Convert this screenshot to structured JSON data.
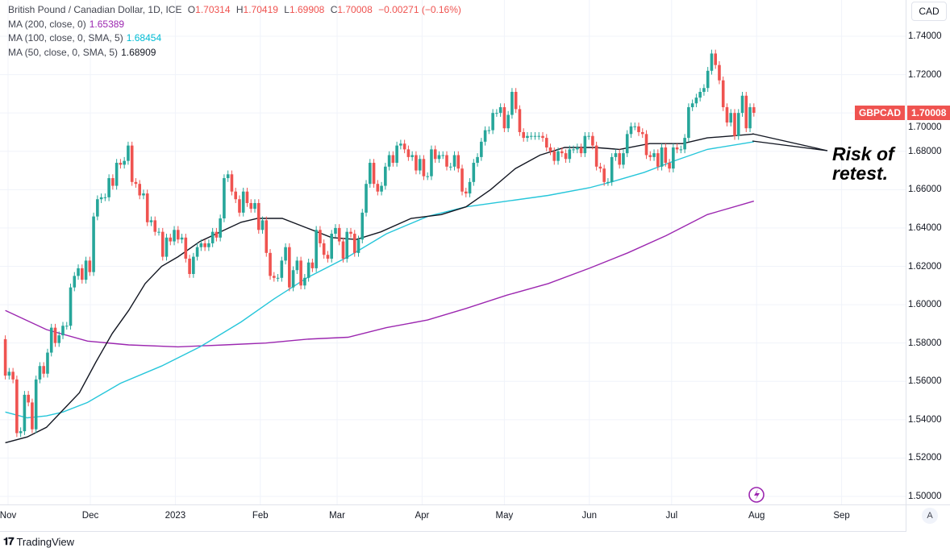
{
  "header": {
    "symbol_title": "British Pound / Canadian Dollar, 1D, ICE",
    "ohlc": {
      "o_label": "O",
      "o": "1.70314",
      "h_label": "H",
      "h": "1.70419",
      "l_label": "L",
      "l": "1.69908",
      "c_label": "C",
      "c": "1.70008",
      "change": "−0.00271 (−0.16%)"
    },
    "indicators": [
      {
        "label": "MA (200, close, 0)",
        "value": "1.65389",
        "color": "#9c27b0"
      },
      {
        "label": "MA (100, close, 0, SMA, 5)",
        "value": "1.68454",
        "color": "#00bcd4"
      },
      {
        "label": "MA (50, close, 0, SMA, 5)",
        "value": "1.68909",
        "color": "#131722"
      }
    ]
  },
  "currency_button": "CAD",
  "last_price_tag": {
    "symbol": "GBPCAD",
    "price": "1.70008"
  },
  "annotation": "Risk of\nretest.",
  "auto_scale_button": "A",
  "brand": {
    "name": "TradingView"
  },
  "colors": {
    "up": "#26a69a",
    "down": "#ef5350",
    "grid": "#f0f3fa",
    "ma200": "#9c27b0",
    "ma100": "#26c6da",
    "ma50": "#131722"
  },
  "chart_data": {
    "type": "candlestick",
    "title": "British Pound / Canadian Dollar, 1D, ICE",
    "ylim": [
      1.49,
      1.75
    ],
    "yticks": [
      "1.74000",
      "1.72000",
      "1.70000",
      "1.68000",
      "1.66000",
      "1.64000",
      "1.62000",
      "1.60000",
      "1.58000",
      "1.56000",
      "1.54000",
      "1.52000",
      "1.50000"
    ],
    "xticks": [
      {
        "label": "Nov",
        "date": "2022-11-01"
      },
      {
        "label": "Dec",
        "date": "2022-12-01"
      },
      {
        "label": "2023",
        "date": "2023-01-01"
      },
      {
        "label": "Feb",
        "date": "2023-02-01"
      },
      {
        "label": "Mar",
        "date": "2023-03-01"
      },
      {
        "label": "Apr",
        "date": "2023-04-01"
      },
      {
        "label": "May",
        "date": "2023-05-01"
      },
      {
        "label": "Jun",
        "date": "2023-06-01"
      },
      {
        "label": "Jul",
        "date": "2023-07-01"
      },
      {
        "label": "Aug",
        "date": "2023-08-01"
      },
      {
        "label": "Sep",
        "date": "2023-09-01"
      }
    ],
    "grid": true,
    "candles": {
      "first_date": "2022-10-31",
      "last_date": "2023-07-31",
      "first_open": 1.582,
      "closes": [
        1.563,
        1.565,
        1.561,
        1.533,
        1.534,
        1.553,
        1.549,
        1.535,
        1.561,
        1.568,
        1.564,
        1.575,
        1.588,
        1.58,
        1.584,
        1.589,
        1.589,
        1.609,
        1.615,
        1.619,
        1.613,
        1.623,
        1.617,
        1.646,
        1.655,
        1.656,
        1.656,
        1.666,
        1.662,
        1.674,
        1.673,
        1.675,
        1.683,
        1.664,
        1.663,
        1.657,
        1.658,
        1.643,
        1.644,
        1.638,
        1.638,
        1.625,
        1.635,
        1.633,
        1.639,
        1.634,
        1.635,
        1.624,
        1.616,
        1.625,
        1.63,
        1.632,
        1.63,
        1.632,
        1.638,
        1.635,
        1.645,
        1.666,
        1.668,
        1.659,
        1.655,
        1.648,
        1.659,
        1.653,
        1.65,
        1.653,
        1.639,
        1.644,
        1.627,
        1.615,
        1.614,
        1.614,
        1.623,
        1.63,
        1.609,
        1.618,
        1.623,
        1.61,
        1.614,
        1.622,
        1.619,
        1.639,
        1.632,
        1.626,
        1.624,
        1.637,
        1.64,
        1.633,
        1.624,
        1.638,
        1.637,
        1.627,
        1.634,
        1.648,
        1.663,
        1.674,
        1.663,
        1.659,
        1.662,
        1.672,
        1.678,
        1.674,
        1.683,
        1.684,
        1.681,
        1.677,
        1.678,
        1.67,
        1.676,
        1.667,
        1.667,
        1.681,
        1.676,
        1.678,
        1.678,
        1.672,
        1.672,
        1.678,
        1.671,
        1.659,
        1.658,
        1.664,
        1.674,
        1.677,
        1.685,
        1.691,
        1.691,
        1.7,
        1.7,
        1.703,
        1.692,
        1.699,
        1.711,
        1.702,
        1.69,
        1.687,
        1.688,
        1.688,
        1.688,
        1.688,
        1.687,
        1.682,
        1.68,
        1.675,
        1.68,
        1.679,
        1.676,
        1.681,
        1.681,
        1.682,
        1.679,
        1.688,
        1.688,
        1.683,
        1.672,
        1.671,
        1.664,
        1.664,
        1.677,
        1.679,
        1.673,
        1.679,
        1.689,
        1.693,
        1.693,
        1.69,
        1.689,
        1.678,
        1.677,
        1.679,
        1.672,
        1.682,
        1.674,
        1.671,
        1.682,
        1.681,
        1.681,
        1.687,
        1.703,
        1.705,
        1.708,
        1.711,
        1.713,
        1.722,
        1.731,
        1.725,
        1.717,
        1.703,
        1.695,
        1.7,
        1.688,
        1.7,
        1.709,
        1.692,
        1.703,
        1.70008
      ]
    },
    "series": [
      {
        "name": "MA (200, close, 0)",
        "color": "#9c27b0",
        "points": [
          [
            "2022-10-31",
            1.597
          ],
          [
            "2022-11-15",
            1.587
          ],
          [
            "2022-11-30",
            1.581
          ],
          [
            "2022-12-15",
            1.579
          ],
          [
            "2023-01-02",
            1.578
          ],
          [
            "2023-01-19",
            1.579
          ],
          [
            "2023-02-03",
            1.58
          ],
          [
            "2023-02-18",
            1.582
          ],
          [
            "2023-03-05",
            1.583
          ],
          [
            "2023-03-19",
            1.588
          ],
          [
            "2023-04-03",
            1.592
          ],
          [
            "2023-04-17",
            1.598
          ],
          [
            "2023-05-02",
            1.605
          ],
          [
            "2023-05-17",
            1.611
          ],
          [
            "2023-06-01",
            1.619
          ],
          [
            "2023-06-15",
            1.627
          ],
          [
            "2023-06-29",
            1.636
          ],
          [
            "2023-07-14",
            1.647
          ],
          [
            "2023-07-31",
            1.654
          ]
        ]
      },
      {
        "name": "MA (100, close, 0, SMA, 5)",
        "color": "#26c6da",
        "points": [
          [
            "2022-10-31",
            1.544
          ],
          [
            "2022-11-08",
            1.541
          ],
          [
            "2022-11-15",
            1.542
          ],
          [
            "2022-11-21",
            1.544
          ],
          [
            "2022-11-30",
            1.549
          ],
          [
            "2022-12-12",
            1.559
          ],
          [
            "2022-12-27",
            1.568
          ],
          [
            "2023-01-10",
            1.578
          ],
          [
            "2023-01-25",
            1.591
          ],
          [
            "2023-02-06",
            1.603
          ],
          [
            "2023-02-18",
            1.614
          ],
          [
            "2023-03-05",
            1.625
          ],
          [
            "2023-03-19",
            1.637
          ],
          [
            "2023-04-03",
            1.646
          ],
          [
            "2023-04-17",
            1.651
          ],
          [
            "2023-05-02",
            1.654
          ],
          [
            "2023-05-17",
            1.657
          ],
          [
            "2023-06-01",
            1.661
          ],
          [
            "2023-06-09",
            1.664
          ],
          [
            "2023-06-21",
            1.669
          ],
          [
            "2023-07-02",
            1.675
          ],
          [
            "2023-07-14",
            1.681
          ],
          [
            "2023-07-31",
            1.685
          ]
        ]
      },
      {
        "name": "MA (50, close, 0, SMA, 5)",
        "color": "#131722",
        "points": [
          [
            "2022-10-31",
            1.528
          ],
          [
            "2022-11-08",
            1.531
          ],
          [
            "2022-11-15",
            1.536
          ],
          [
            "2022-11-21",
            1.545
          ],
          [
            "2022-11-27",
            1.554
          ],
          [
            "2022-12-03",
            1.57
          ],
          [
            "2022-12-09",
            1.585
          ],
          [
            "2022-12-15",
            1.597
          ],
          [
            "2022-12-21",
            1.611
          ],
          [
            "2022-12-27",
            1.62
          ],
          [
            "2023-01-02",
            1.625
          ],
          [
            "2023-01-10",
            1.633
          ],
          [
            "2023-01-19",
            1.639
          ],
          [
            "2023-01-25",
            1.643
          ],
          [
            "2023-01-31",
            1.645
          ],
          [
            "2023-02-09",
            1.645
          ],
          [
            "2023-02-18",
            1.64
          ],
          [
            "2023-02-27",
            1.635
          ],
          [
            "2023-03-08",
            1.634
          ],
          [
            "2023-03-17",
            1.638
          ],
          [
            "2023-03-28",
            1.645
          ],
          [
            "2023-04-08",
            1.647
          ],
          [
            "2023-04-17",
            1.651
          ],
          [
            "2023-04-26",
            1.66
          ],
          [
            "2023-05-05",
            1.671
          ],
          [
            "2023-05-14",
            1.678
          ],
          [
            "2023-05-23",
            1.682
          ],
          [
            "2023-06-03",
            1.682
          ],
          [
            "2023-06-12",
            1.681
          ],
          [
            "2023-06-23",
            1.684
          ],
          [
            "2023-07-05",
            1.684
          ],
          [
            "2023-07-14",
            1.687
          ],
          [
            "2023-07-23",
            1.688
          ],
          [
            "2023-07-31",
            1.689
          ]
        ]
      }
    ]
  }
}
